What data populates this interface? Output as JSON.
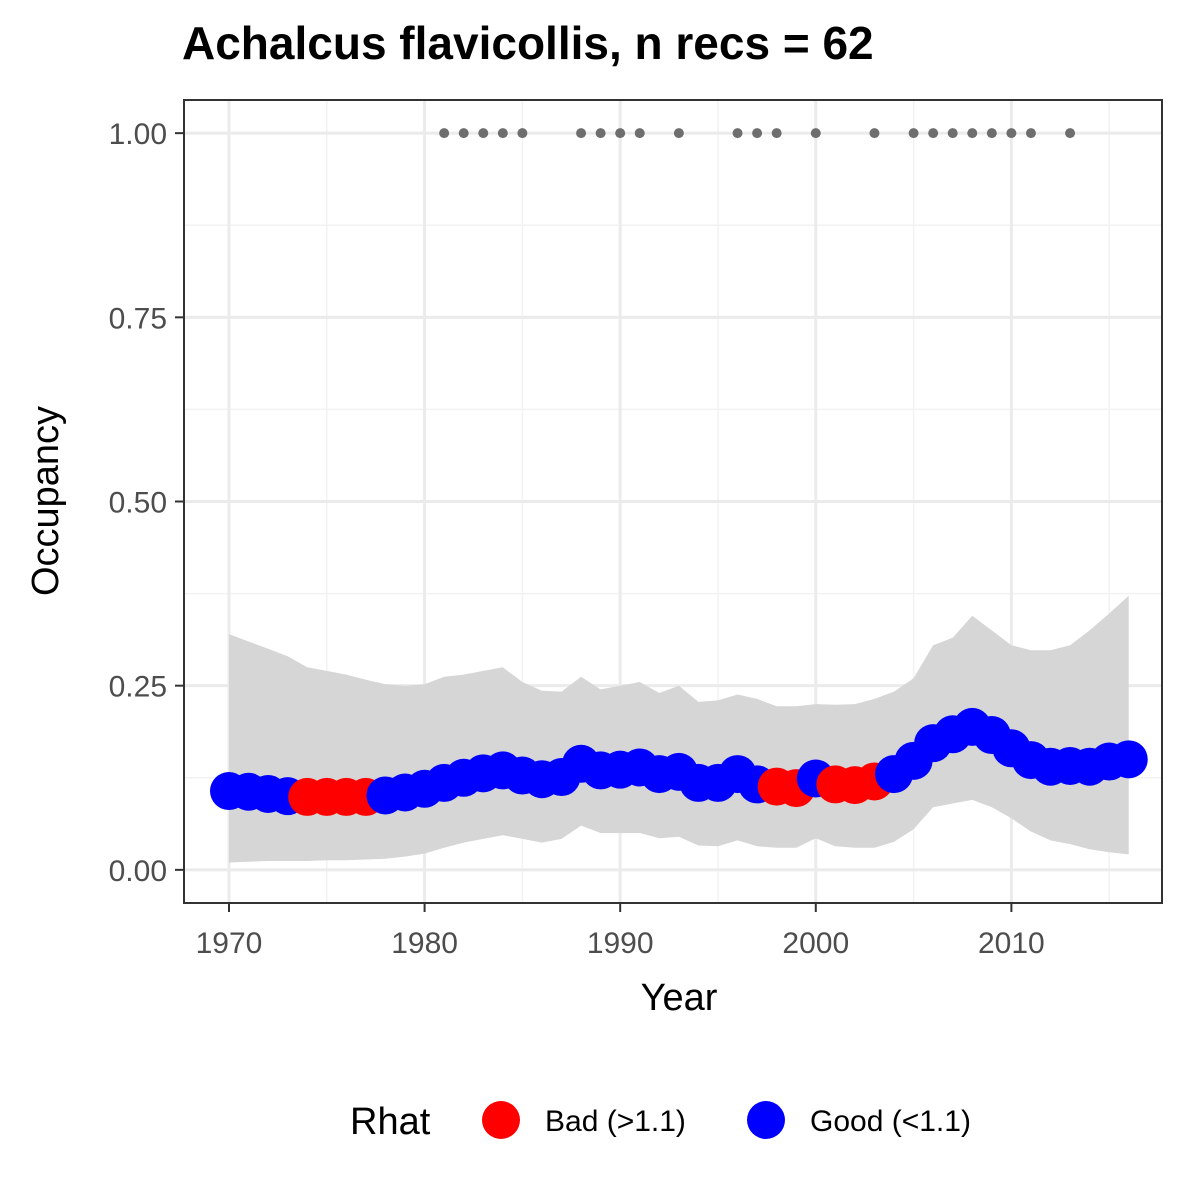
{
  "chart_data": {
    "type": "line",
    "title": "Achalcus flavicollis, n recs = 62",
    "xlabel": "Year",
    "ylabel": "Occupancy",
    "xlim": [
      1967.7,
      2017.7
    ],
    "ylim": [
      -0.045,
      1.045
    ],
    "x_ticks": [
      1970,
      1980,
      1990,
      2000,
      2010
    ],
    "x_tick_labels": [
      "1970",
      "1980",
      "1990",
      "2000",
      "2010"
    ],
    "y_ticks": [
      0,
      0.25,
      0.5,
      0.75,
      1.0
    ],
    "y_tick_labels": [
      "0.00",
      "0.25",
      "0.50",
      "0.75",
      "1.00"
    ],
    "grid": true,
    "legend": {
      "title": "Rhat",
      "position": "bottom",
      "items": [
        {
          "label": "Bad (>1.1)",
          "color": "#ff0000"
        },
        {
          "label": "Good (<1.1)",
          "color": "#0000ff"
        }
      ]
    },
    "colors": {
      "bad": "#ff0000",
      "good": "#0000ff",
      "records": "#6e6e6e",
      "ribbon": "#d6d6d6"
    },
    "years": [
      1970,
      1971,
      1972,
      1973,
      1974,
      1975,
      1976,
      1977,
      1978,
      1979,
      1980,
      1981,
      1982,
      1983,
      1984,
      1985,
      1986,
      1987,
      1988,
      1989,
      1990,
      1991,
      1992,
      1993,
      1994,
      1995,
      1996,
      1997,
      1998,
      1999,
      2000,
      2001,
      2002,
      2003,
      2004,
      2005,
      2006,
      2007,
      2008,
      2009,
      2010,
      2011,
      2012,
      2013,
      2014,
      2015,
      2016
    ],
    "mean": [
      0.107,
      0.106,
      0.103,
      0.1,
      0.099,
      0.099,
      0.099,
      0.099,
      0.101,
      0.105,
      0.11,
      0.118,
      0.125,
      0.131,
      0.135,
      0.128,
      0.123,
      0.126,
      0.144,
      0.135,
      0.136,
      0.139,
      0.13,
      0.133,
      0.118,
      0.118,
      0.13,
      0.116,
      0.113,
      0.111,
      0.124,
      0.116,
      0.115,
      0.12,
      0.13,
      0.148,
      0.172,
      0.184,
      0.194,
      0.183,
      0.165,
      0.149,
      0.14,
      0.141,
      0.14,
      0.147,
      0.15
    ],
    "lower": [
      0.01,
      0.011,
      0.012,
      0.012,
      0.012,
      0.013,
      0.013,
      0.014,
      0.015,
      0.018,
      0.022,
      0.03,
      0.037,
      0.042,
      0.047,
      0.042,
      0.037,
      0.042,
      0.06,
      0.05,
      0.05,
      0.05,
      0.043,
      0.045,
      0.033,
      0.032,
      0.04,
      0.032,
      0.03,
      0.03,
      0.043,
      0.032,
      0.03,
      0.03,
      0.038,
      0.055,
      0.085,
      0.09,
      0.095,
      0.085,
      0.07,
      0.052,
      0.04,
      0.035,
      0.028,
      0.024,
      0.021
    ],
    "upper": [
      0.32,
      0.31,
      0.3,
      0.29,
      0.275,
      0.27,
      0.265,
      0.258,
      0.252,
      0.25,
      0.252,
      0.262,
      0.265,
      0.27,
      0.275,
      0.255,
      0.243,
      0.242,
      0.262,
      0.245,
      0.25,
      0.255,
      0.24,
      0.25,
      0.228,
      0.23,
      0.238,
      0.232,
      0.222,
      0.222,
      0.225,
      0.224,
      0.225,
      0.232,
      0.242,
      0.26,
      0.305,
      0.315,
      0.345,
      0.325,
      0.305,
      0.298,
      0.298,
      0.305,
      0.325,
      0.348,
      0.372
    ],
    "rhat": [
      "Good",
      "Good",
      "Good",
      "Good",
      "Bad",
      "Bad",
      "Bad",
      "Bad",
      "Good",
      "Good",
      "Good",
      "Good",
      "Good",
      "Good",
      "Good",
      "Good",
      "Good",
      "Good",
      "Good",
      "Good",
      "Good",
      "Good",
      "Good",
      "Good",
      "Good",
      "Good",
      "Good",
      "Good",
      "Bad",
      "Bad",
      "Good",
      "Bad",
      "Bad",
      "Bad",
      "Good",
      "Good",
      "Good",
      "Good",
      "Good",
      "Good",
      "Good",
      "Good",
      "Good",
      "Good",
      "Good",
      "Good",
      "Good"
    ],
    "record_years": [
      1981,
      1982,
      1983,
      1984,
      1985,
      1988,
      1989,
      1990,
      1991,
      1993,
      1996,
      1997,
      1998,
      2000,
      2003,
      2005,
      2006,
      2007,
      2008,
      2009,
      2010,
      2011,
      2013
    ],
    "record_value": 1.0
  }
}
